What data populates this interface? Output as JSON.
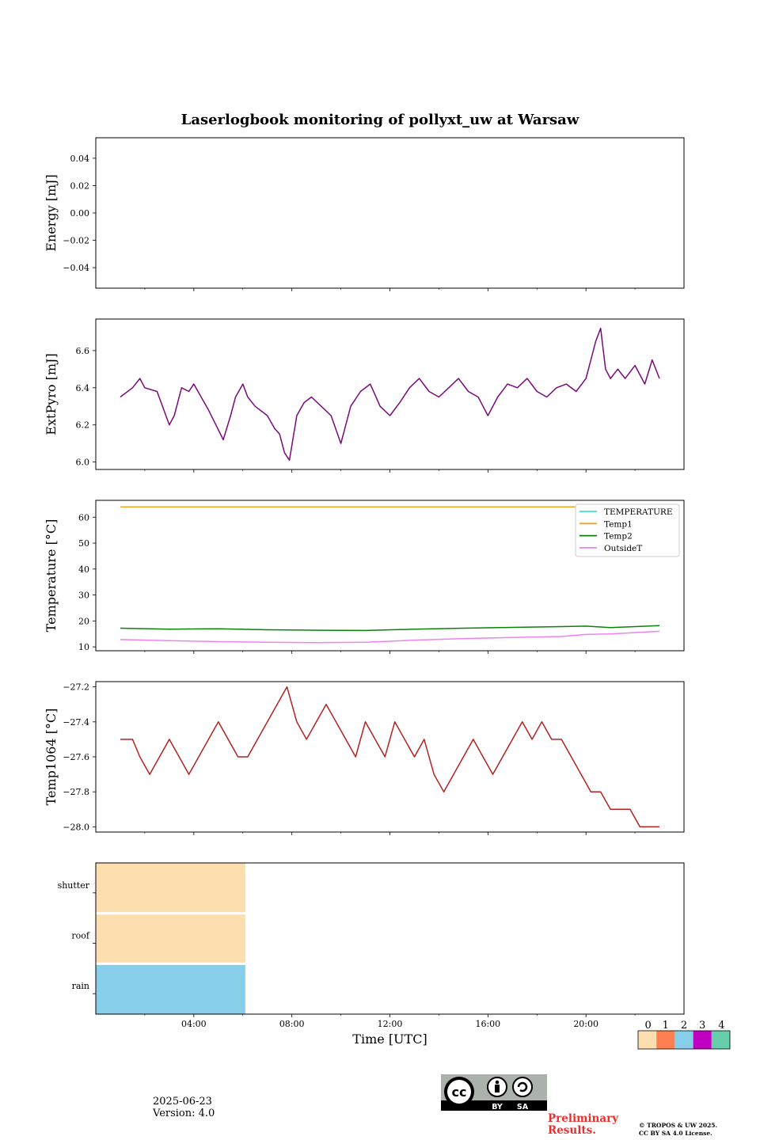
{
  "figure_title": "Laserlogbook monitoring of pollyxt_uw at Warsaw",
  "footer": {
    "date": "2025-06-23",
    "version": "Version: 4.0",
    "preliminary_line1": "Preliminary",
    "preliminary_line2": "Results.",
    "copyright_line1": "© TROPOS & UW 2025.",
    "copyright_line2": "CC BY SA 4.0 License.",
    "cc_badge_text": [
      "BY",
      "SA"
    ]
  },
  "colors": {
    "extpyro": "#7a0a7a",
    "temperature": "#3fe0e0",
    "temp1": "#f4a31a",
    "temp2": "#0a820a",
    "outsideT": "#ee82ee",
    "temp1064": "#b22222",
    "status": [
      "#fddeae",
      "#ff7f50",
      "#87ceeb",
      "#c000c0",
      "#66cdaa"
    ]
  },
  "chart_data": [
    {
      "type": "line",
      "ylabel": "Energy [mJ]",
      "ylim": [
        -0.055,
        0.055
      ],
      "yticks": [
        "0.04",
        "0.02",
        "0.00",
        "−0.02",
        "−0.04"
      ],
      "ytick_values": [
        0.04,
        0.02,
        0.0,
        -0.02,
        -0.04
      ],
      "series": []
    },
    {
      "type": "line",
      "ylabel": "ExtPyro [mJ]",
      "ylim": [
        5.96,
        6.77
      ],
      "yticks": [
        "6.6",
        "6.4",
        "6.2",
        "6.0"
      ],
      "ytick_values": [
        6.6,
        6.4,
        6.2,
        6.0
      ],
      "series": [
        {
          "color": "#7a0a7a",
          "x": [
            1.0,
            1.5,
            1.8,
            2.0,
            2.5,
            3.0,
            3.2,
            3.5,
            3.8,
            4.0,
            4.3,
            4.6,
            4.9,
            5.2,
            5.5,
            5.7,
            6.0,
            6.2,
            6.5,
            7.0,
            7.3,
            7.5,
            7.7,
            7.9,
            8.2,
            8.5,
            8.8,
            9.2,
            9.6,
            10.0,
            10.4,
            10.8,
            11.2,
            11.6,
            12.0,
            12.4,
            12.8,
            13.2,
            13.6,
            14.0,
            14.4,
            14.8,
            15.2,
            15.6,
            16.0,
            16.4,
            16.8,
            17.2,
            17.6,
            18.0,
            18.4,
            18.8,
            19.2,
            19.6,
            20.0,
            20.2,
            20.4,
            20.6,
            20.8,
            21.0,
            21.3,
            21.6,
            22.0,
            22.4,
            22.7,
            23.0
          ],
          "y": [
            6.35,
            6.4,
            6.45,
            6.4,
            6.38,
            6.2,
            6.25,
            6.4,
            6.38,
            6.42,
            6.35,
            6.28,
            6.2,
            6.12,
            6.25,
            6.35,
            6.42,
            6.35,
            6.3,
            6.25,
            6.18,
            6.15,
            6.05,
            6.01,
            6.25,
            6.32,
            6.35,
            6.3,
            6.25,
            6.1,
            6.3,
            6.38,
            6.42,
            6.3,
            6.25,
            6.32,
            6.4,
            6.45,
            6.38,
            6.35,
            6.4,
            6.45,
            6.38,
            6.35,
            6.25,
            6.35,
            6.42,
            6.4,
            6.45,
            6.38,
            6.35,
            6.4,
            6.42,
            6.38,
            6.45,
            6.55,
            6.65,
            6.72,
            6.5,
            6.45,
            6.5,
            6.45,
            6.52,
            6.42,
            6.55,
            6.45
          ]
        }
      ]
    },
    {
      "type": "line",
      "ylabel": "Temperature [°C]",
      "ylim": [
        8.5,
        66.5
      ],
      "yticks": [
        "60",
        "50",
        "40",
        "30",
        "20",
        "10"
      ],
      "ytick_values": [
        60,
        50,
        40,
        30,
        20,
        10
      ],
      "legend_position": "upper-right",
      "series": [
        {
          "name": "TEMPERATURE",
          "color": "#3fe0e0",
          "x": [],
          "y": []
        },
        {
          "name": "Temp1",
          "color": "#f4a31a",
          "x": [
            1.0,
            23.0
          ],
          "y": [
            64,
            64
          ]
        },
        {
          "name": "Temp2",
          "color": "#0a820a",
          "x": [
            1.0,
            3.0,
            5.0,
            7.0,
            9.0,
            11.0,
            13.0,
            15.0,
            17.0,
            19.0,
            20.0,
            21.0,
            23.0
          ],
          "y": [
            17.2,
            16.8,
            17.0,
            16.6,
            16.4,
            16.3,
            16.8,
            17.2,
            17.5,
            17.8,
            18.0,
            17.4,
            18.2
          ]
        },
        {
          "name": "OutsideT",
          "color": "#ee82ee",
          "x": [
            1.0,
            3.0,
            5.0,
            7.0,
            9.0,
            11.0,
            13.0,
            15.0,
            17.0,
            19.0,
            20.0,
            21.0,
            23.0
          ],
          "y": [
            12.8,
            12.4,
            12.0,
            11.8,
            11.6,
            11.8,
            12.6,
            13.2,
            13.6,
            14.0,
            14.8,
            15.0,
            16.0
          ]
        }
      ]
    },
    {
      "type": "line",
      "ylabel": "Temp1064 [°C]",
      "ylim": [
        -28.03,
        -27.17
      ],
      "yticks": [
        "−27.2",
        "−27.4",
        "−27.6",
        "−27.8",
        "−28.0"
      ],
      "ytick_values": [
        -27.2,
        -27.4,
        -27.6,
        -27.8,
        -28.0
      ],
      "series": [
        {
          "color": "#b22222",
          "x": [
            1.0,
            1.5,
            1.8,
            2.2,
            2.6,
            3.0,
            3.4,
            3.8,
            4.2,
            4.6,
            5.0,
            5.4,
            5.8,
            6.2,
            6.6,
            7.0,
            7.4,
            7.8,
            8.0,
            8.2,
            8.6,
            9.0,
            9.4,
            9.8,
            10.2,
            10.6,
            11.0,
            11.4,
            11.8,
            12.2,
            12.6,
            13.0,
            13.4,
            13.8,
            14.2,
            14.6,
            15.0,
            15.4,
            15.8,
            16.2,
            16.6,
            17.0,
            17.4,
            17.8,
            18.2,
            18.6,
            19.0,
            19.4,
            19.8,
            20.2,
            20.6,
            21.0,
            21.4,
            21.8,
            22.2,
            22.6,
            23.0
          ],
          "y": [
            -27.5,
            -27.5,
            -27.6,
            -27.7,
            -27.6,
            -27.5,
            -27.6,
            -27.7,
            -27.6,
            -27.5,
            -27.4,
            -27.5,
            -27.6,
            -27.6,
            -27.5,
            -27.4,
            -27.3,
            -27.2,
            -27.3,
            -27.4,
            -27.5,
            -27.4,
            -27.3,
            -27.4,
            -27.5,
            -27.6,
            -27.4,
            -27.5,
            -27.6,
            -27.4,
            -27.5,
            -27.6,
            -27.5,
            -27.7,
            -27.8,
            -27.7,
            -27.6,
            -27.5,
            -27.6,
            -27.7,
            -27.6,
            -27.5,
            -27.4,
            -27.5,
            -27.4,
            -27.5,
            -27.5,
            -27.6,
            -27.7,
            -27.8,
            -27.8,
            -27.9,
            -27.9,
            -27.9,
            -28.0,
            -28.0,
            -28.0
          ]
        }
      ]
    },
    {
      "type": "heatmap",
      "xlabel": "Time [UTC]",
      "xticks": [
        "04:00",
        "08:00",
        "12:00",
        "16:00",
        "20:00"
      ],
      "xtick_values": [
        4,
        8,
        12,
        16,
        20
      ],
      "xlim": [
        0,
        24
      ],
      "rows": [
        {
          "label": "shutter",
          "segments": [
            {
              "start": 0,
              "end": 6.1,
              "value": 0
            }
          ]
        },
        {
          "label": "roof",
          "segments": [
            {
              "start": 0,
              "end": 6.1,
              "value": 0
            }
          ]
        },
        {
          "label": "rain",
          "segments": [
            {
              "start": 0,
              "end": 6.1,
              "value": 2
            }
          ]
        }
      ],
      "colorbar_ticks": [
        "0",
        "1",
        "2",
        "3",
        "4"
      ]
    }
  ]
}
